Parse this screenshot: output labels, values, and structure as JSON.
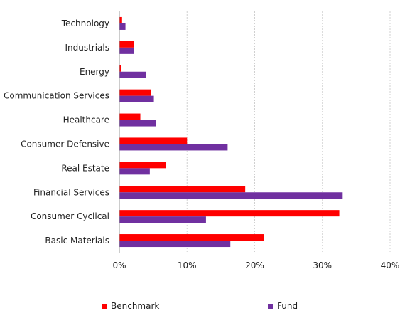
{
  "chart_data": {
    "type": "bar",
    "orientation": "horizontal",
    "categories": [
      "Technology",
      "Industrials",
      "Energy",
      "Communication Services",
      "Healthcare",
      "Consumer Defensive",
      "Real Estate",
      "Financial Services",
      "Consumer Cyclical",
      "Basic Materials"
    ],
    "series": [
      {
        "name": "Benchmark",
        "color": "#ff0000",
        "values": [
          0.4,
          2.2,
          0.3,
          4.7,
          3.1,
          10.0,
          6.9,
          18.6,
          32.5,
          21.4
        ]
      },
      {
        "name": "Fund",
        "color": "#7030a0",
        "values": [
          0.9,
          2.1,
          3.9,
          5.1,
          5.4,
          16.0,
          4.5,
          33.0,
          12.8,
          16.4
        ]
      }
    ],
    "xlim": [
      0,
      40
    ],
    "xticks": [
      "0%",
      "10%",
      "20%",
      "30%",
      "40%"
    ],
    "grid": true,
    "legend_position": "bottom",
    "title": "",
    "xlabel": "",
    "ylabel": ""
  }
}
